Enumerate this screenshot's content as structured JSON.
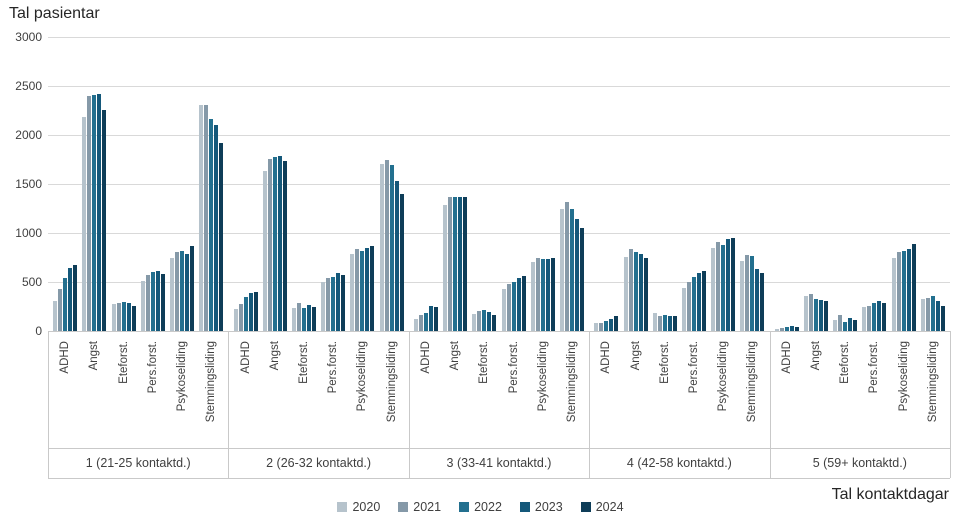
{
  "chart_data": {
    "type": "bar",
    "title": "Tal pasientar",
    "xlabel": "Tal kontaktdagar",
    "ylim": [
      0,
      3000
    ],
    "yticks": [
      0,
      500,
      1000,
      1500,
      2000,
      2500,
      3000
    ],
    "grid": true,
    "legend_position": "bottom-center",
    "series_names": [
      "2020",
      "2021",
      "2022",
      "2023",
      "2024"
    ],
    "series_colors": [
      "#b6c3cc",
      "#8599a8",
      "#23708f",
      "#14587a",
      "#0e3d58"
    ],
    "categories": [
      "ADHD",
      "Angst",
      "Eteforst.",
      "Pers.forst.",
      "Psykoseliding",
      "Stemningsliding"
    ],
    "groups": [
      {
        "label": "1 (21-25 kontaktd.)",
        "values": [
          [
            310,
            430,
            545,
            640,
            675
          ],
          [
            2180,
            2400,
            2410,
            2420,
            2250
          ],
          [
            275,
            290,
            295,
            285,
            250
          ],
          [
            515,
            570,
            600,
            615,
            585
          ],
          [
            740,
            805,
            815,
            790,
            865
          ],
          [
            2310,
            2310,
            2160,
            2100,
            1915
          ]
        ]
      },
      {
        "label": "2 (26-32 kontaktd.)",
        "values": [
          [
            220,
            280,
            345,
            390,
            400
          ],
          [
            1630,
            1755,
            1775,
            1785,
            1730
          ],
          [
            230,
            290,
            235,
            270,
            240
          ],
          [
            500,
            545,
            555,
            590,
            575
          ],
          [
            790,
            840,
            820,
            850,
            865
          ],
          [
            1700,
            1745,
            1690,
            1530,
            1395
          ]
        ]
      },
      {
        "label": "3 (33-41 kontaktd.)",
        "values": [
          [
            125,
            165,
            185,
            260,
            240
          ],
          [
            1290,
            1370,
            1370,
            1370,
            1370
          ],
          [
            175,
            200,
            210,
            195,
            160
          ],
          [
            425,
            475,
            500,
            540,
            560
          ],
          [
            700,
            745,
            730,
            730,
            745
          ],
          [
            1240,
            1315,
            1245,
            1145,
            1050
          ]
        ]
      },
      {
        "label": "4 (42-58 kontaktd.)",
        "values": [
          [
            85,
            80,
            105,
            125,
            150
          ],
          [
            760,
            835,
            805,
            790,
            740
          ],
          [
            185,
            155,
            160,
            150,
            155
          ],
          [
            440,
            500,
            550,
            595,
            610
          ],
          [
            845,
            910,
            875,
            935,
            945
          ],
          [
            710,
            780,
            765,
            630,
            595
          ]
        ]
      },
      {
        "label": "5 (59+ kontaktd.)",
        "values": [
          [
            25,
            30,
            45,
            50,
            40
          ],
          [
            355,
            375,
            330,
            315,
            305
          ],
          [
            110,
            160,
            90,
            130,
            115
          ],
          [
            240,
            255,
            290,
            310,
            290
          ],
          [
            745,
            805,
            815,
            840,
            890
          ],
          [
            325,
            335,
            355,
            305,
            260
          ]
        ]
      }
    ]
  }
}
